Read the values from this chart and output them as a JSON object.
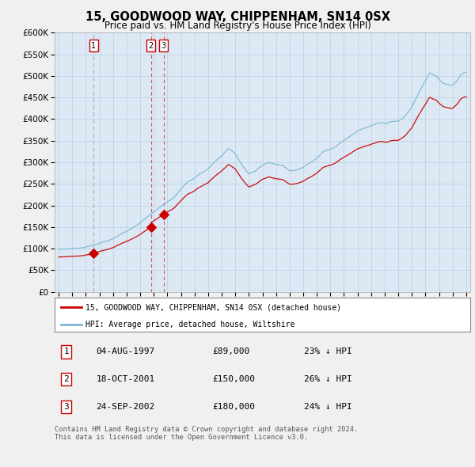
{
  "title": "15, GOODWOOD WAY, CHIPPENHAM, SN14 0SX",
  "subtitle": "Price paid vs. HM Land Registry's House Price Index (HPI)",
  "sale_dates": [
    1997.583,
    2001.792,
    2002.729
  ],
  "sale_prices": [
    89000,
    150000,
    180000
  ],
  "sale_labels": [
    "1",
    "2",
    "3"
  ],
  "vline_styles": [
    "gray_dash",
    "red_dash",
    "red_dash"
  ],
  "transactions": [
    {
      "label": "1",
      "date": "04-AUG-1997",
      "price": "£89,000",
      "hpi_diff": "23% ↓ HPI"
    },
    {
      "label": "2",
      "date": "18-OCT-2001",
      "price": "£150,000",
      "hpi_diff": "26% ↓ HPI"
    },
    {
      "label": "3",
      "date": "24-SEP-2002",
      "price": "£180,000",
      "hpi_diff": "24% ↓ HPI"
    }
  ],
  "ylim": [
    0,
    600000
  ],
  "yticks": [
    0,
    50000,
    100000,
    150000,
    200000,
    250000,
    300000,
    350000,
    400000,
    450000,
    500000,
    550000,
    600000
  ],
  "xlim": [
    1994.7,
    2025.3
  ],
  "hpi_color": "#7db8d8",
  "sale_color": "#cc0000",
  "vline_color_red": "#e05050",
  "vline_color_gray": "#aaaaaa",
  "bg_color": "#f0f0f0",
  "plot_bg_color": "#dce9f5",
  "grid_color": "#b8cfe0",
  "legend_box_color": "#ffffff",
  "footer_text": "Contains HM Land Registry data © Crown copyright and database right 2024.\nThis data is licensed under the Open Government Licence v3.0."
}
